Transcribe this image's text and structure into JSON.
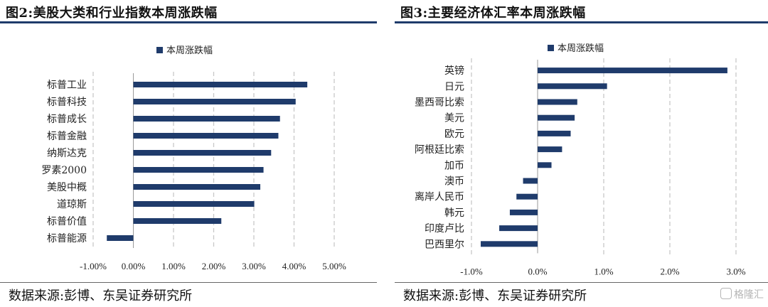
{
  "left": {
    "title": "图2:美股大类和行业指数本周涨跌幅",
    "source": "数据来源:彭博、东吴证券研究所"
  },
  "right": {
    "title": "图3:主要经济体汇率本周涨跌幅",
    "source": "数据来源:彭博、东吴证券研究所"
  },
  "watermark": {
    "label": "格隆汇"
  },
  "colors": {
    "bar": "#1f3b6b",
    "grid": "#c8c8c8",
    "accent": "#1f3b6b"
  },
  "chart_data": [
    {
      "type": "bar",
      "orientation": "horizontal",
      "title": "图2:美股大类和行业指数本周涨跌幅",
      "legend": "本周涨跌幅",
      "legend_position": "top",
      "grid": true,
      "xlim": [
        -1,
        5
      ],
      "ticks": [
        -1,
        0,
        1,
        2,
        3,
        4,
        5
      ],
      "tick_labels": [
        "-1.00%",
        "0.00%",
        "1.00%",
        "2.00%",
        "3.00%",
        "4.00%",
        "5.00%"
      ],
      "categories": [
        "标普工业",
        "标普科技",
        "标普成长",
        "标普金融",
        "纳斯达克",
        "罗素2000",
        "美股中概",
        "道琼斯",
        "标普价值",
        "标普能源"
      ],
      "values": [
        4.33,
        4.04,
        3.65,
        3.61,
        3.43,
        3.24,
        3.16,
        3.01,
        2.19,
        -0.66
      ]
    },
    {
      "type": "bar",
      "orientation": "horizontal",
      "title": "图3:主要经济体汇率本周涨跌幅",
      "legend": "本周涨跌幅",
      "legend_position": "top",
      "grid": true,
      "xlim": [
        -1,
        3
      ],
      "ticks": [
        -1,
        0,
        1,
        2,
        3
      ],
      "tick_labels": [
        "-1.0%",
        "0.0%",
        "1.0%",
        "2.0%",
        "3.0%"
      ],
      "categories": [
        "英镑",
        "日元",
        "墨西哥比索",
        "美元",
        "欧元",
        "阿根廷比索",
        "加币",
        "澳币",
        "离岸人民币",
        "韩元",
        "印度卢比",
        "巴西里尔"
      ],
      "values": [
        2.87,
        1.05,
        0.6,
        0.56,
        0.5,
        0.37,
        0.21,
        -0.22,
        -0.32,
        -0.42,
        -0.58,
        -0.86
      ]
    }
  ]
}
